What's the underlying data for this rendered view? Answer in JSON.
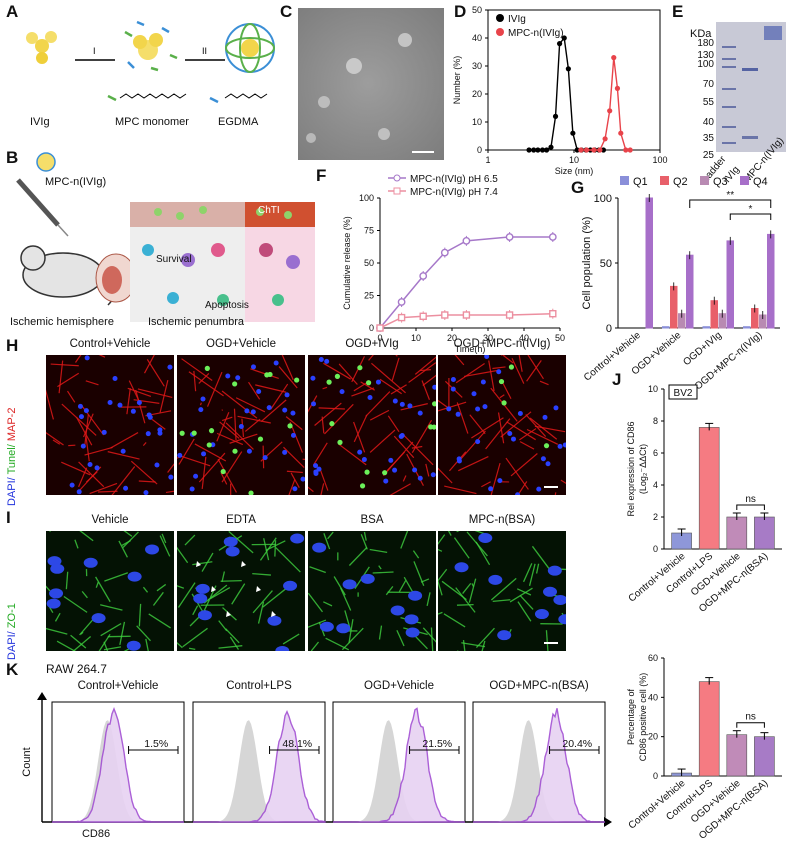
{
  "panels": {
    "A": "A",
    "B": "B",
    "C": "C",
    "D": "D",
    "E": "E",
    "F": "F",
    "G": "G",
    "H": "H",
    "I": "I",
    "J": "J",
    "K": "K"
  },
  "panelA": {
    "ivig": "IVIg",
    "mpc": "MPC monomer",
    "egdma": "EGDMA",
    "step1": "I",
    "step2": "II"
  },
  "panelB": {
    "label": "MPC-n(IVIg)",
    "survival": "Survival",
    "apoptosis": "Apoptosis",
    "ischemic_hemisphere": "Ischemic hemisphere",
    "ischemic_penumbra": "Ischemic penumbra",
    "chti": "ChTI"
  },
  "panelE": {
    "unit": "KDa",
    "lanes": [
      "Ladder",
      "IVIg",
      "MPC-n(IVIg)"
    ],
    "markers": [
      "180",
      "130",
      "100",
      "70",
      "55",
      "40",
      "35",
      "25"
    ]
  },
  "panelH": {
    "titles": [
      "Control+Vehicle",
      "OGD+Vehicle",
      "OGD+IVIg",
      "OGD+MPC-n(IVIg)"
    ],
    "ylabel_dapi": "DAPI/",
    "ylabel_tunel": " Tunel/",
    "ylabel_map": " MAP-2"
  },
  "panelI": {
    "titles": [
      "Vehicle",
      "EDTA",
      "BSA",
      "MPC-n(BSA)"
    ],
    "ylabel_dapi": "DAPI/",
    "ylabel_zo": " ZO-1"
  },
  "panelK": {
    "cell": "RAW 264.7",
    "titles": [
      "Control+Vehicle",
      "Control+LPS",
      "OGD+Vehicle",
      "OGD+MPC-n(BSA)"
    ],
    "percents": [
      "1.5%",
      "48.1%",
      "21.5%",
      "20.4%"
    ],
    "ylabel": "Count",
    "xlabel": "CD86"
  },
  "colors": {
    "ivig": "#000000",
    "mpcn": "#e8434a",
    "purple": "#a678c9",
    "pink": "#ec8fa0",
    "q1": "#8a8fd9",
    "q2": "#e8606a",
    "q3": "#b88ab2",
    "q4": "#a76fc9",
    "j_blue": "#8e97d9",
    "j_red": "#f57b82",
    "j_mauve": "#c08bb8",
    "j_purple": "#a77bc6"
  },
  "chart_data": [
    {
      "panel": "D",
      "type": "scatter",
      "xlabel": "Size (nm)",
      "ylabel": "Number (%)",
      "xscale": "log",
      "xlim": [
        1,
        100
      ],
      "ylim": [
        0,
        50
      ],
      "xticks": [
        "1",
        "10",
        "100"
      ],
      "yticks": [
        "0",
        "10",
        "20",
        "30",
        "40",
        "50"
      ],
      "series": [
        {
          "name": "IVIg",
          "x": [
            3,
            3.4,
            3.8,
            4.3,
            4.8,
            5.4,
            6.1,
            6.8,
            7.7,
            8.6,
            9.7,
            10.9,
            12.2,
            13.8,
            15.5,
            17.4,
            19.5,
            22
          ],
          "y": [
            0,
            0,
            0,
            0,
            0,
            1,
            12,
            38,
            40,
            29,
            6,
            0,
            0,
            0,
            0,
            0,
            0,
            0
          ]
        },
        {
          "name": "MPC-n(IVIg)",
          "x": [
            12,
            14,
            17,
            20,
            23,
            26,
            29,
            32,
            35,
            40,
            45
          ],
          "y": [
            0,
            0,
            0,
            0,
            4,
            14,
            33,
            22,
            6,
            0,
            0
          ]
        }
      ]
    },
    {
      "panel": "F",
      "type": "line",
      "xlabel": "Time(h)",
      "ylabel": "Cumulative release (%)",
      "xlim": [
        0,
        50
      ],
      "ylim": [
        0,
        100
      ],
      "xticks": [
        "0",
        "10",
        "20",
        "30",
        "40",
        "50"
      ],
      "yticks": [
        "0",
        "25",
        "50",
        "75",
        "100"
      ],
      "x": [
        0,
        6,
        12,
        18,
        24,
        36,
        48
      ],
      "series": [
        {
          "name": "MPC-n(IVIg) pH 6.5",
          "values": [
            0,
            20,
            40,
            58,
            67,
            70,
            70
          ]
        },
        {
          "name": "MPC-n(IVIg) pH 7.4",
          "values": [
            0,
            8,
            9,
            10,
            10,
            10,
            11
          ]
        }
      ]
    },
    {
      "panel": "G",
      "type": "bar",
      "ylabel": "Cell population (%)",
      "ylim": [
        0,
        100
      ],
      "yticks": [
        "0",
        "50",
        "100"
      ],
      "categories": [
        "Control+Vehicle",
        "OGD+Vehicle",
        "OGD+IVIg",
        "OGD+MPC-n(IVIg)"
      ],
      "series": [
        {
          "name": "Q1",
          "values": [
            0,
            1,
            1,
            1
          ]
        },
        {
          "name": "Q2",
          "values": [
            0,
            32,
            21,
            15
          ]
        },
        {
          "name": "Q3",
          "values": [
            0,
            11,
            11,
            10
          ]
        },
        {
          "name": "Q4",
          "values": [
            100,
            56,
            67,
            72
          ]
        }
      ],
      "annotations": [
        "**",
        "*"
      ]
    },
    {
      "panel": "J1",
      "type": "bar",
      "annotation": "BV2",
      "ylabel": "Rel expression of CD86",
      "ylabel_sub": "(Log₂⁻ΔΔCt)",
      "ylim": [
        0,
        10
      ],
      "yticks": [
        "0",
        "2",
        "4",
        "6",
        "8",
        "10"
      ],
      "categories": [
        "Control+Vehicle",
        "Control+LPS",
        "OGD+Vehicle",
        "OGD+MPC-n(BSA)"
      ],
      "values": [
        1.0,
        7.6,
        2.0,
        2.0
      ],
      "sig": "ns"
    },
    {
      "panel": "J2",
      "type": "bar",
      "ylabel": "Percentage of",
      "ylabel2": "CD86 positive cell (%)",
      "ylim": [
        0,
        60
      ],
      "yticks": [
        "0",
        "20",
        "40",
        "60"
      ],
      "categories": [
        "Control+Vehicle",
        "Control+LPS",
        "OGD+Vehicle",
        "OGD+MPC-n(BSA)"
      ],
      "values": [
        1.5,
        48,
        21,
        20
      ],
      "sig": "ns"
    }
  ]
}
